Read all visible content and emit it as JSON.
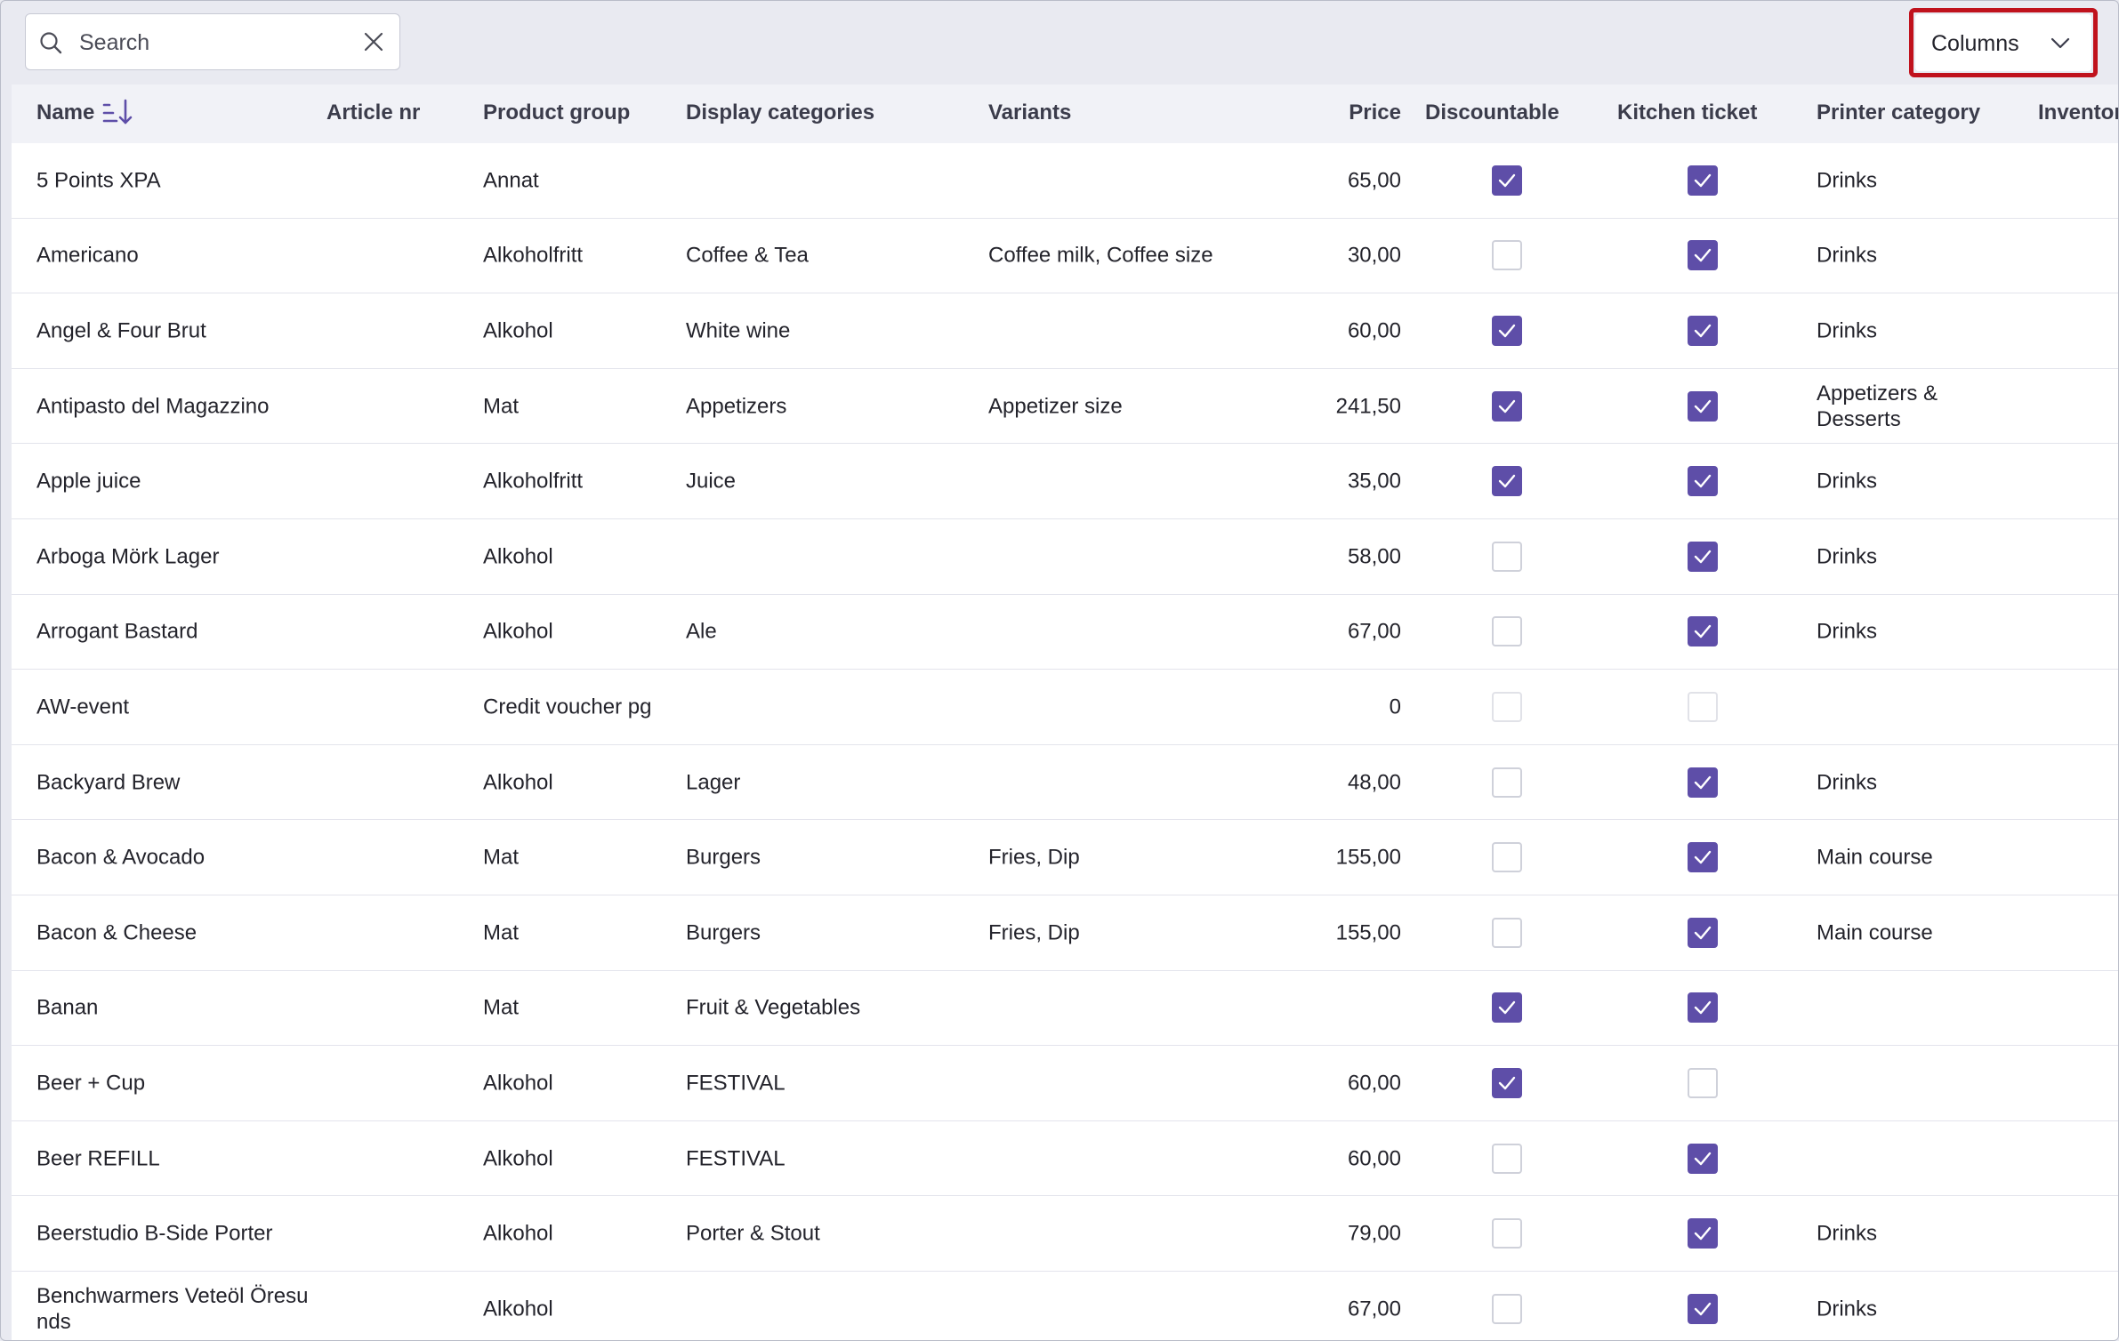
{
  "search": {
    "placeholder": "Search",
    "value": ""
  },
  "columns_button": {
    "label": "Columns"
  },
  "headers": {
    "name": "Name",
    "article": "Article nr",
    "group": "Product group",
    "display": "Display categories",
    "variants": "Variants",
    "price": "Price",
    "discountable": "Discountable",
    "kitchen": "Kitchen ticket",
    "printer": "Printer category",
    "inventory": "Inventor"
  },
  "colors": {
    "accent": "#5e4ea8",
    "highlight": "#c0121d"
  },
  "rows": [
    {
      "name": "5 Points XPA",
      "article": "",
      "group": "Annat",
      "display": "",
      "variants": "",
      "price": "65,00",
      "discountable": true,
      "kitchen": true,
      "printer": "Drinks"
    },
    {
      "name": "Americano",
      "article": "",
      "group": "Alkoholfritt",
      "display": "Coffee & Tea",
      "variants": "Coffee milk, Coffee size",
      "price": "30,00",
      "discountable": false,
      "kitchen": true,
      "printer": "Drinks"
    },
    {
      "name": "Angel & Four Brut",
      "article": "",
      "group": "Alkohol",
      "display": "White wine",
      "variants": "",
      "price": "60,00",
      "discountable": true,
      "kitchen": true,
      "printer": "Drinks"
    },
    {
      "name": "Antipasto del Magazzino",
      "article": "",
      "group": "Mat",
      "display": "Appetizers",
      "variants": "Appetizer size",
      "price": "241,50",
      "discountable": true,
      "kitchen": true,
      "printer": "Appetizers & Desserts"
    },
    {
      "name": "Apple juice",
      "article": "",
      "group": "Alkoholfritt",
      "display": "Juice",
      "variants": "",
      "price": "35,00",
      "discountable": true,
      "kitchen": true,
      "printer": "Drinks"
    },
    {
      "name": "Arboga Mörk Lager",
      "article": "",
      "group": "Alkohol",
      "display": "",
      "variants": "",
      "price": "58,00",
      "discountable": false,
      "kitchen": true,
      "printer": "Drinks"
    },
    {
      "name": "Arrogant Bastard",
      "article": "",
      "group": "Alkohol",
      "display": "Ale",
      "variants": "",
      "price": "67,00",
      "discountable": false,
      "kitchen": true,
      "printer": "Drinks"
    },
    {
      "name": "AW-event",
      "article": "",
      "group": "Credit voucher pg",
      "display": "",
      "variants": "",
      "price": "0",
      "discountable": false,
      "kitchen": false,
      "printer": "",
      "disabled": true
    },
    {
      "name": "Backyard Brew",
      "article": "",
      "group": "Alkohol",
      "display": "Lager",
      "variants": "",
      "price": "48,00",
      "discountable": false,
      "kitchen": true,
      "printer": "Drinks"
    },
    {
      "name": "Bacon & Avocado",
      "article": "",
      "group": "Mat",
      "display": "Burgers",
      "variants": "Fries, Dip",
      "price": "155,00",
      "discountable": false,
      "kitchen": true,
      "printer": "Main course"
    },
    {
      "name": "Bacon & Cheese",
      "article": "",
      "group": "Mat",
      "display": "Burgers",
      "variants": "Fries, Dip",
      "price": "155,00",
      "discountable": false,
      "kitchen": true,
      "printer": "Main course"
    },
    {
      "name": "Banan",
      "article": "",
      "group": "Mat",
      "display": "Fruit & Vegetables",
      "variants": "",
      "price": "",
      "discountable": true,
      "kitchen": true,
      "printer": ""
    },
    {
      "name": "Beer + Cup",
      "article": "",
      "group": "Alkohol",
      "display": "FESTIVAL",
      "variants": "",
      "price": "60,00",
      "discountable": true,
      "kitchen": false,
      "printer": ""
    },
    {
      "name": "Beer REFILL",
      "article": "",
      "group": "Alkohol",
      "display": "FESTIVAL",
      "variants": "",
      "price": "60,00",
      "discountable": false,
      "kitchen": true,
      "printer": ""
    },
    {
      "name": "Beerstudio B-Side Porter",
      "article": "",
      "group": "Alkohol",
      "display": "Porter & Stout",
      "variants": "",
      "price": "79,00",
      "discountable": false,
      "kitchen": true,
      "printer": "Drinks"
    },
    {
      "name": "Benchwarmers Veteöl Öresu nds",
      "article": "",
      "group": "Alkohol",
      "display": "",
      "variants": "",
      "price": "67,00",
      "discountable": false,
      "kitchen": true,
      "printer": "Drinks"
    }
  ]
}
